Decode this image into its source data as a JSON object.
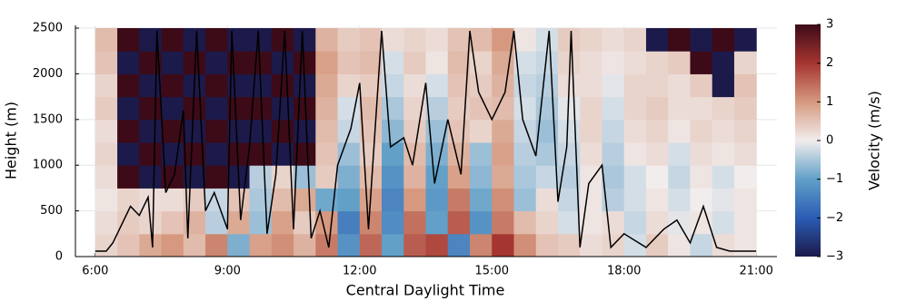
{
  "chart_data": {
    "type": "heatmap",
    "x_label": "Central Daylight Time",
    "y_label": "Height (m)",
    "colorbar_label": "Velocity (m/s)",
    "xlim": [
      5.55,
      21.47
    ],
    "ylim": [
      0,
      2530
    ],
    "xticks": [
      {
        "value": 6,
        "label": "6:00"
      },
      {
        "value": 9,
        "label": "9:00"
      },
      {
        "value": 12,
        "label": "12:00"
      },
      {
        "value": 15,
        "label": "15:00"
      },
      {
        "value": 18,
        "label": "18:00"
      },
      {
        "value": 21,
        "label": "21:00"
      }
    ],
    "yticks": [
      0,
      500,
      1000,
      1500,
      2000,
      2500
    ],
    "grid": true,
    "clim": [
      -3,
      3
    ],
    "cticks": [
      {
        "value": -3,
        "label": "−3"
      },
      {
        "value": -2,
        "label": "−2"
      },
      {
        "value": -1,
        "label": "−1"
      },
      0,
      1,
      2,
      3
    ],
    "colorscale": [
      "#1c1a4a",
      "#2a5cb4",
      "#62a0c8",
      "#f1eded",
      "#d6997f",
      "#a53530",
      "#3d0a18"
    ],
    "x": [
      6.25,
      6.75,
      7.25,
      7.75,
      8.25,
      8.75,
      9.25,
      9.75,
      10.25,
      10.75,
      11.25,
      11.75,
      12.25,
      12.75,
      13.25,
      13.75,
      14.25,
      14.75,
      15.25,
      15.75,
      16.25,
      16.75,
      17.25,
      17.75,
      18.25,
      18.75,
      19.25,
      19.75,
      20.25,
      20.75
    ],
    "y": [
      125,
      375,
      625,
      875,
      1125,
      1375,
      1625,
      1875,
      2125,
      2375
    ],
    "z": [
      [
        0.3,
        0.5,
        0.8,
        1.0,
        0.6,
        1.2,
        -0.8,
        0.9,
        1.1,
        0.7,
        1.3,
        -1.2,
        1.5,
        -1.0,
        1.6,
        1.8,
        -1.4,
        1.2,
        2.0,
        1.1,
        0.5,
        0.4,
        0.2,
        0.3,
        -0.2,
        0.4,
        0.1,
        -0.3,
        0.2,
        0.1
      ],
      [
        0.2,
        0.4,
        0.3,
        0.5,
        0.7,
        -0.4,
        0.8,
        -0.6,
        0.9,
        0.4,
        1.0,
        -1.5,
        1.2,
        -1.3,
        1.4,
        -1.0,
        1.6,
        -1.2,
        1.3,
        0.6,
        0.3,
        -0.2,
        0.1,
        0.2,
        -0.3,
        0.2,
        -0.1,
        0.1,
        -0.2,
        0.1
      ],
      [
        0.1,
        0.3,
        0.2,
        0.2,
        0.4,
        -0.3,
        0.5,
        -0.5,
        0.6,
        0.8,
        -0.9,
        -1.0,
        0.9,
        -1.4,
        1.0,
        -1.1,
        1.3,
        -0.9,
        1.1,
        -0.6,
        0.2,
        -0.3,
        0.1,
        -0.4,
        -0.2,
        0.1,
        -0.2,
        0.0,
        -0.1,
        0.1
      ],
      [
        0.2,
        3,
        -3,
        3,
        -3,
        3,
        -3,
        -0.4,
        0.3,
        -0.6,
        0.4,
        -0.8,
        0.6,
        -1.2,
        0.7,
        -1.0,
        0.9,
        -0.7,
        0.8,
        -0.5,
        -0.3,
        -0.4,
        0.1,
        -0.5,
        -0.2,
        0.0,
        -0.3,
        0.1,
        -0.2,
        0.0
      ],
      [
        0.3,
        -3,
        3,
        -3,
        3,
        -3,
        3,
        3,
        -3,
        3,
        0.5,
        -0.6,
        0.4,
        -1.0,
        0.6,
        -0.8,
        0.7,
        -0.6,
        0.9,
        -0.4,
        -0.5,
        -0.3,
        0.2,
        -0.4,
        0.1,
        0.2,
        -0.2,
        0.2,
        0.1,
        0.2
      ],
      [
        0.2,
        3,
        -3,
        3,
        -3,
        3,
        -3,
        -3,
        3,
        -3,
        0.6,
        -0.3,
        0.5,
        -0.7,
        0.4,
        -0.6,
        0.5,
        0.3,
        0.8,
        -0.3,
        -0.6,
        -0.2,
        0.3,
        -0.3,
        0.2,
        0.3,
        0.1,
        0.3,
        0.2,
        0.3
      ],
      [
        0.4,
        -3,
        3,
        -3,
        3,
        -3,
        3,
        3,
        -3,
        3,
        0.7,
        -0.2,
        0.6,
        -0.5,
        0.3,
        -0.4,
        0.4,
        0.5,
        0.6,
        -0.2,
        -0.5,
        -0.1,
        0.3,
        -0.2,
        0.3,
        0.4,
        0.2,
        0.2,
        0.3,
        0.4
      ],
      [
        0.3,
        3,
        -3,
        3,
        -3,
        3,
        -3,
        -3,
        3,
        -3,
        0.8,
        0.3,
        0.4,
        -0.3,
        0.2,
        -0.2,
        0.5,
        0.4,
        0.7,
        -0.3,
        -0.4,
        0.2,
        0.2,
        -0.1,
        0.3,
        0.3,
        0.2,
        0.4,
        -3,
        0.5
      ],
      [
        0.5,
        -3,
        3,
        -3,
        3,
        -3,
        3,
        3,
        -3,
        3,
        0.9,
        0.5,
        0.6,
        -0.2,
        0.4,
        0.1,
        0.6,
        0.3,
        0.8,
        -0.2,
        -0.3,
        0.3,
        0.2,
        0.1,
        0.2,
        0.3,
        0.4,
        3,
        -3,
        0.3
      ],
      [
        0.6,
        3,
        -3,
        3,
        -3,
        3,
        -3,
        -3,
        3,
        -3,
        0.7,
        0.4,
        0.5,
        0.2,
        0.3,
        0.2,
        0.5,
        0.6,
        1.0,
        0.1,
        -0.2,
        0.4,
        0.3,
        0.2,
        0.3,
        -3,
        3,
        -3,
        3,
        -3
      ]
    ],
    "line": {
      "color": "#000000",
      "x": [
        6.0,
        6.25,
        6.4,
        6.6,
        6.8,
        7.0,
        7.2,
        7.3,
        7.4,
        7.6,
        7.8,
        8.0,
        8.1,
        8.3,
        8.5,
        8.7,
        9.0,
        9.1,
        9.3,
        9.5,
        9.7,
        9.9,
        10.1,
        10.3,
        10.5,
        10.7,
        10.9,
        11.1,
        11.3,
        11.5,
        11.8,
        12.0,
        12.2,
        12.5,
        12.7,
        13.0,
        13.2,
        13.5,
        13.7,
        14.0,
        14.3,
        14.5,
        14.7,
        15.0,
        15.3,
        15.5,
        15.7,
        16.0,
        16.3,
        16.5,
        16.7,
        16.8,
        17.0,
        17.2,
        17.5,
        17.7,
        18.0,
        18.5,
        18.9,
        19.2,
        19.5,
        19.8,
        20.1,
        20.4,
        21.0
      ],
      "values": [
        60,
        60,
        150,
        350,
        550,
        450,
        650,
        100,
        2470,
        700,
        900,
        1600,
        200,
        2470,
        500,
        700,
        300,
        2470,
        400,
        1200,
        2470,
        250,
        900,
        2470,
        300,
        2470,
        200,
        500,
        100,
        1000,
        1400,
        1900,
        300,
        2470,
        1200,
        1300,
        1000,
        1900,
        800,
        1500,
        900,
        2470,
        1800,
        1500,
        1800,
        2470,
        1500,
        1100,
        2470,
        600,
        1200,
        2470,
        100,
        800,
        1000,
        100,
        250,
        100,
        300,
        400,
        150,
        550,
        100,
        60,
        60
      ]
    }
  }
}
